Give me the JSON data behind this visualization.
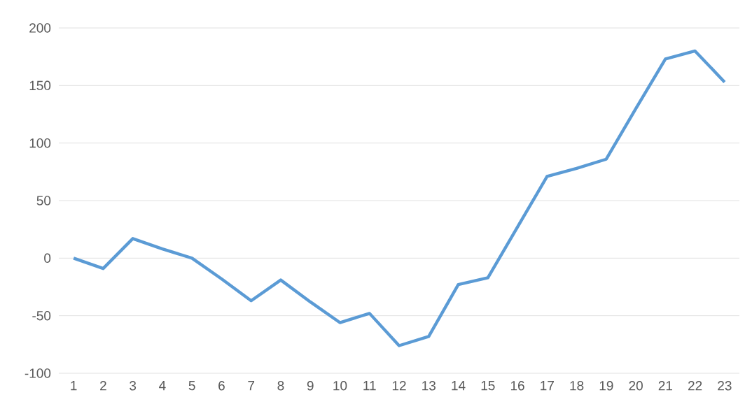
{
  "chart_data": {
    "type": "line",
    "categories": [
      "1",
      "2",
      "3",
      "4",
      "5",
      "6",
      "7",
      "8",
      "9",
      "10",
      "11",
      "12",
      "13",
      "14",
      "15",
      "16",
      "17",
      "18",
      "19",
      "20",
      "21",
      "22",
      "23"
    ],
    "series": [
      {
        "color": "#5b9bd5",
        "values": [
          0,
          -9,
          17,
          8,
          0,
          -18,
          -37,
          -19,
          -38,
          -56,
          -48,
          -76,
          -68,
          -23,
          -17,
          27,
          71,
          78,
          86,
          130,
          173,
          180,
          153
        ]
      }
    ],
    "ylim": [
      -100,
      200
    ],
    "yticks": [
      -100,
      -50,
      0,
      50,
      100,
      150,
      200
    ],
    "grid": "y",
    "legend": false,
    "marker": "none",
    "line_style": "solid"
  }
}
